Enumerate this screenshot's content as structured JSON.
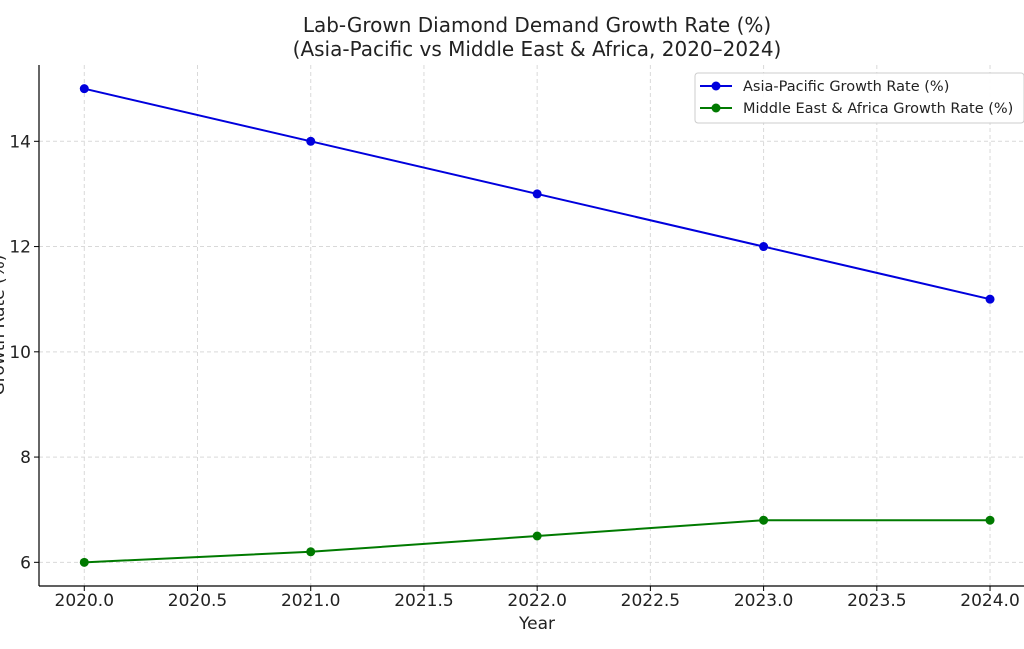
{
  "chart_data": {
    "type": "line",
    "title": [
      "Lab-Grown Diamond Demand Growth Rate (%)",
      "(Asia-Pacific vs Middle East & Africa, 2020–2024)"
    ],
    "xlabel": "Year",
    "ylabel": "Growth Rate (%)",
    "x": [
      2020,
      2021,
      2022,
      2023,
      2024
    ],
    "xticks": [
      "2020.0",
      "2020.5",
      "2021.0",
      "2021.5",
      "2022.0",
      "2022.5",
      "2023.0",
      "2023.5",
      "2024.0"
    ],
    "xtick_values": [
      2020.0,
      2020.5,
      2021.0,
      2021.5,
      2022.0,
      2022.5,
      2023.0,
      2023.5,
      2024.0
    ],
    "yticks": [
      6,
      8,
      10,
      12,
      14
    ],
    "xlim": [
      2019.8,
      2024.15
    ],
    "ylim": [
      5.55,
      15.45
    ],
    "grid": true,
    "legend_position": "top-right",
    "series": [
      {
        "name": "Asia-Pacific Growth Rate (%)",
        "color": "#0000dd",
        "values": [
          15,
          14,
          13,
          12,
          11
        ]
      },
      {
        "name": "Middle East & Africa Growth Rate (%)",
        "color": "#007a00",
        "values": [
          6.0,
          6.2,
          6.5,
          6.8,
          6.8
        ]
      }
    ]
  }
}
